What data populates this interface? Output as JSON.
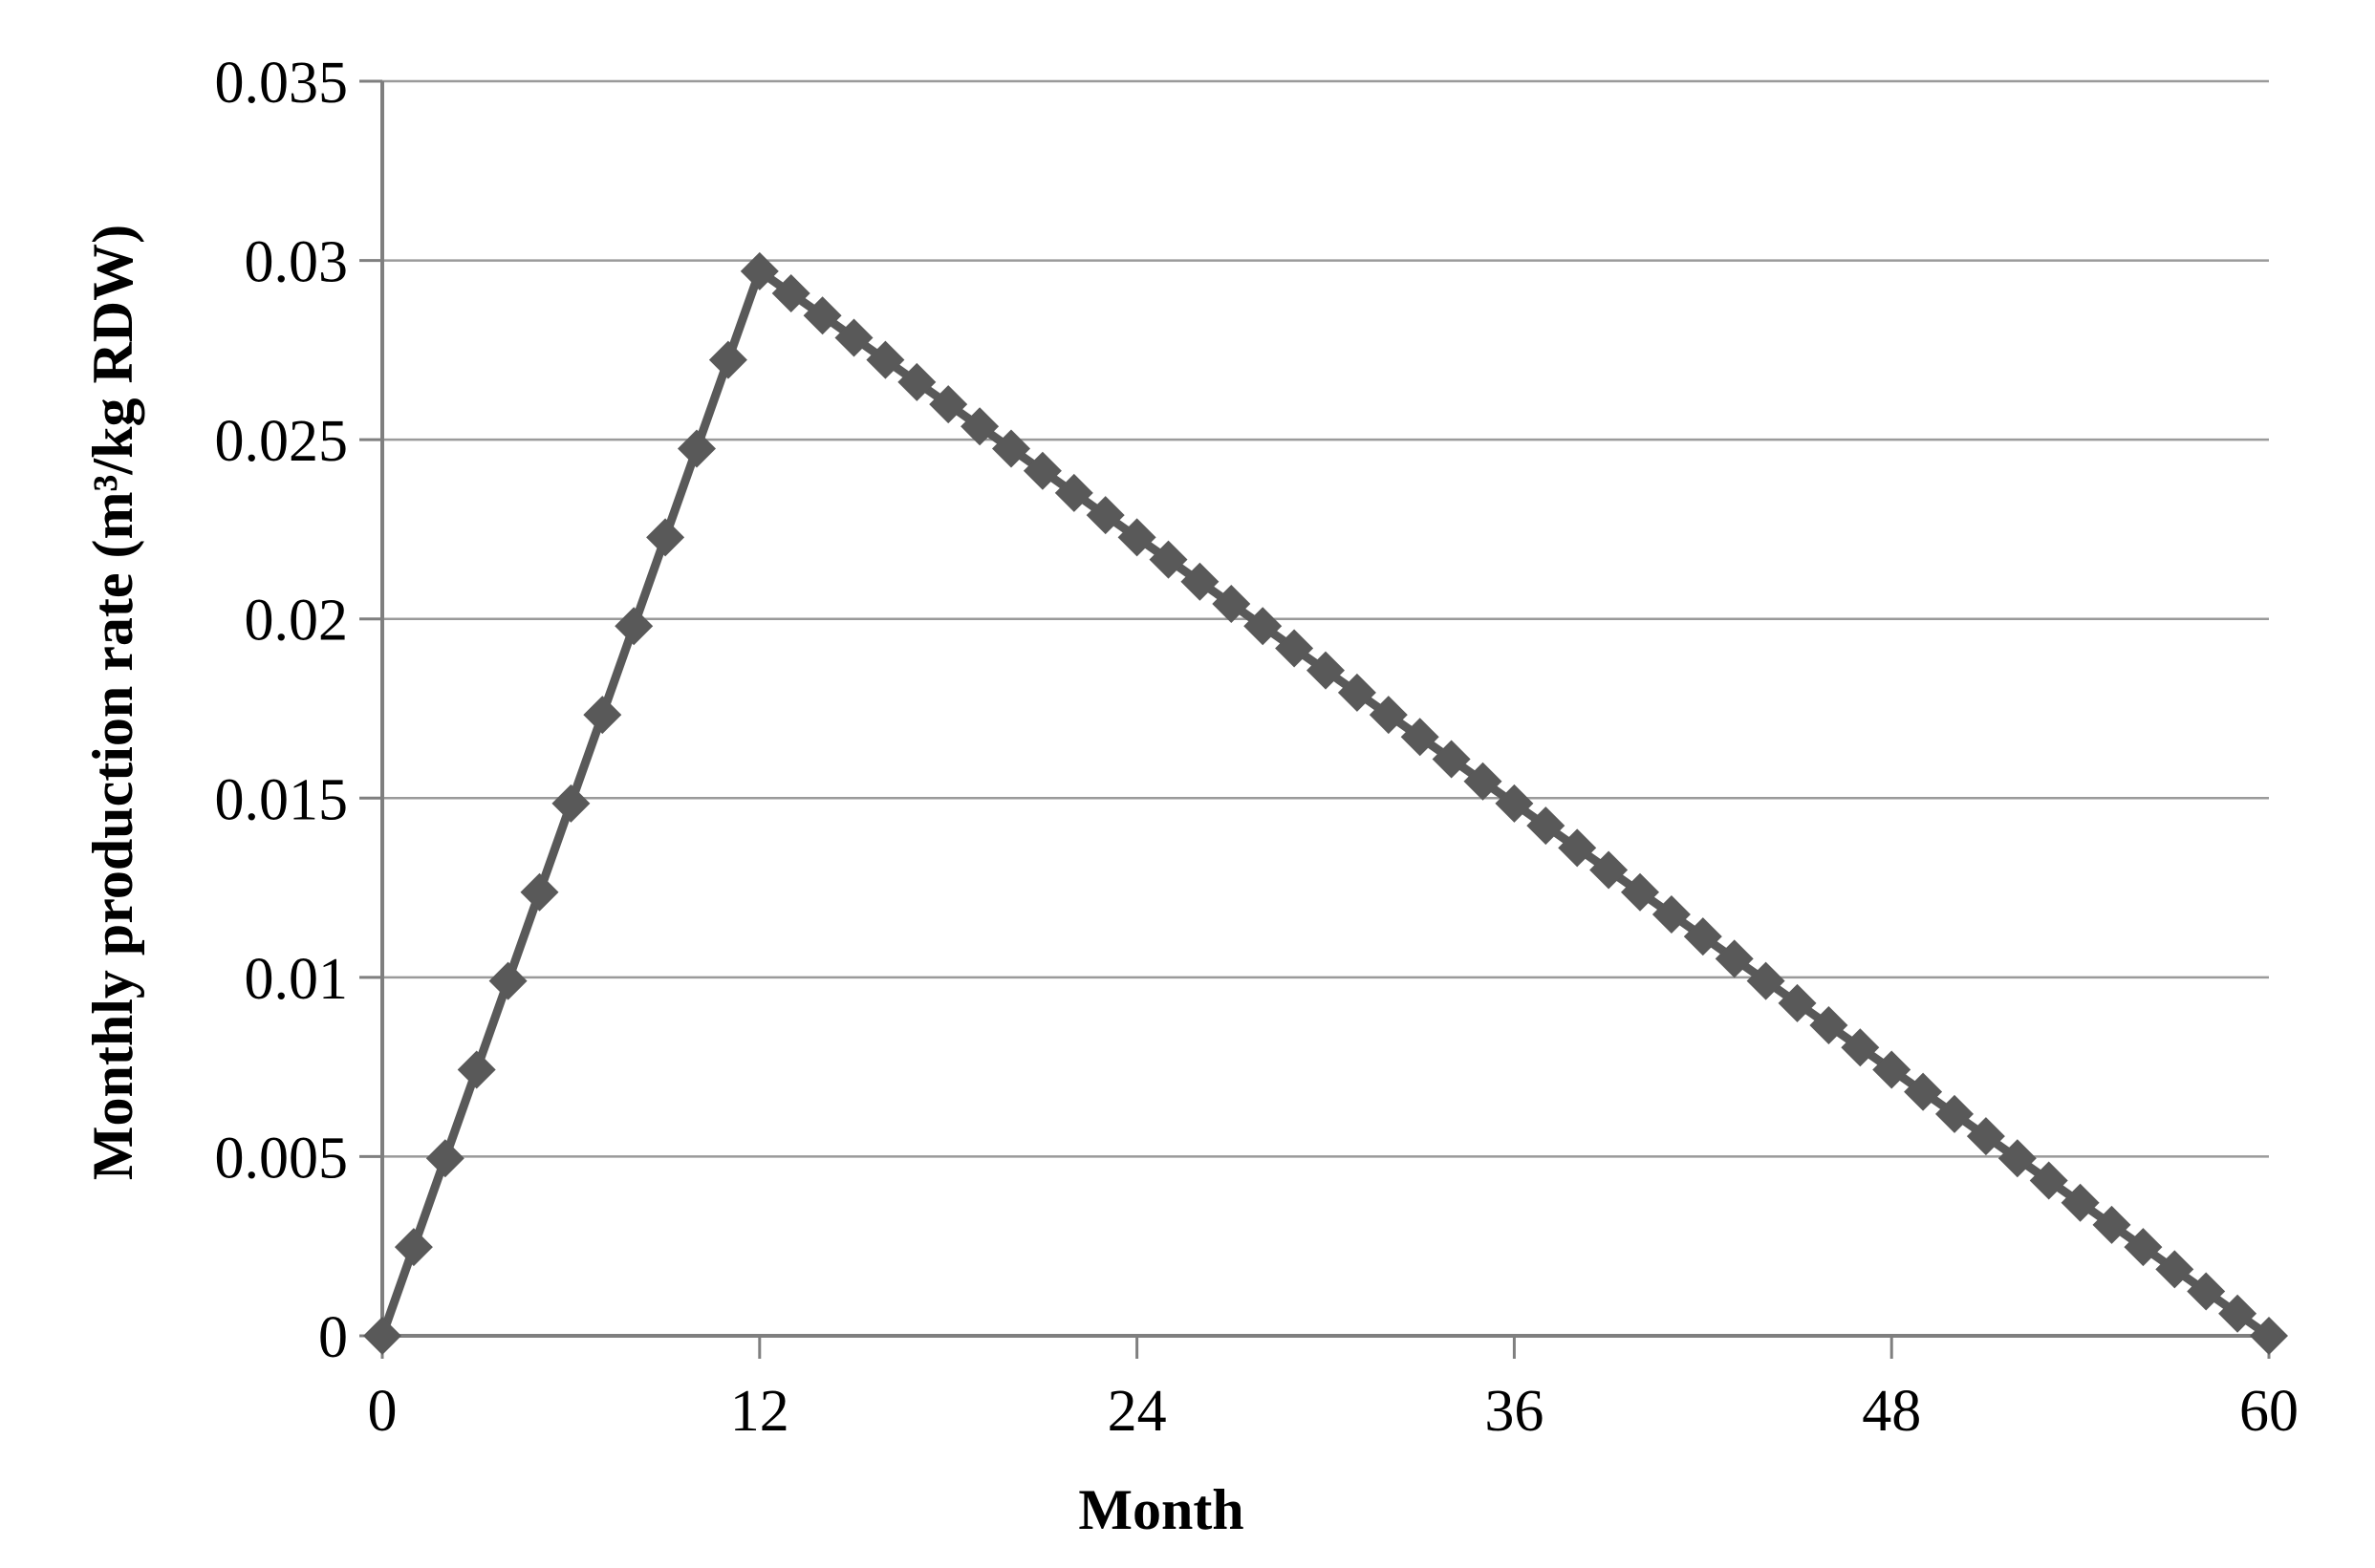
{
  "chart_data": {
    "type": "line",
    "title": "",
    "xlabel": "Month",
    "ylabel": "Monthly production rate (m³/kg RDW)",
    "xlim": [
      0,
      60
    ],
    "ylim": [
      0,
      0.035
    ],
    "x_ticks": [
      0,
      12,
      24,
      36,
      48,
      60
    ],
    "x_tick_labels": [
      "0",
      "12",
      "24",
      "36",
      "48",
      "60"
    ],
    "y_ticks": [
      0,
      0.005,
      0.01,
      0.015,
      0.02,
      0.025,
      0.03,
      0.035
    ],
    "y_tick_labels": [
      "0",
      "0.005",
      "0.01",
      "0.015",
      "0.02",
      "0.025",
      "0.03",
      "0.035"
    ],
    "grid": "horizontal-only",
    "legend_position": "none",
    "marker": "diamond",
    "series": [
      {
        "name": "Monthly production rate",
        "color": "#595959",
        "x": [
          0,
          1,
          2,
          3,
          4,
          5,
          6,
          7,
          8,
          9,
          10,
          11,
          12,
          13,
          14,
          15,
          16,
          17,
          18,
          19,
          20,
          21,
          22,
          23,
          24,
          25,
          26,
          27,
          28,
          29,
          30,
          31,
          32,
          33,
          34,
          35,
          36,
          37,
          38,
          39,
          40,
          41,
          42,
          43,
          44,
          45,
          46,
          47,
          48,
          49,
          50,
          51,
          52,
          53,
          54,
          55,
          56,
          57,
          58,
          59,
          60
        ],
        "y": [
          0,
          0.002475,
          0.00495,
          0.007425,
          0.0099,
          0.012375,
          0.01485,
          0.017325,
          0.0198,
          0.022275,
          0.02475,
          0.027225,
          0.0297,
          0.029081,
          0.028463,
          0.027844,
          0.027225,
          0.026606,
          0.025988,
          0.025369,
          0.02475,
          0.024131,
          0.023513,
          0.022894,
          0.022275,
          0.021656,
          0.021038,
          0.020419,
          0.0198,
          0.019181,
          0.018563,
          0.017944,
          0.017325,
          0.016706,
          0.016088,
          0.015469,
          0.01485,
          0.014231,
          0.013613,
          0.012994,
          0.012375,
          0.011756,
          0.011138,
          0.010519,
          0.0099,
          0.009281,
          0.008663,
          0.008044,
          0.007425,
          0.006806,
          0.006188,
          0.005569,
          0.00495,
          0.004331,
          0.003713,
          0.003094,
          0.002475,
          0.001856,
          0.001238,
          0.000619,
          0
        ]
      }
    ],
    "colors": {
      "series": "#595959",
      "gridline": "#9a9a9a",
      "axis": "#7f7f7f",
      "text": "#000000",
      "background": "#ffffff"
    }
  }
}
